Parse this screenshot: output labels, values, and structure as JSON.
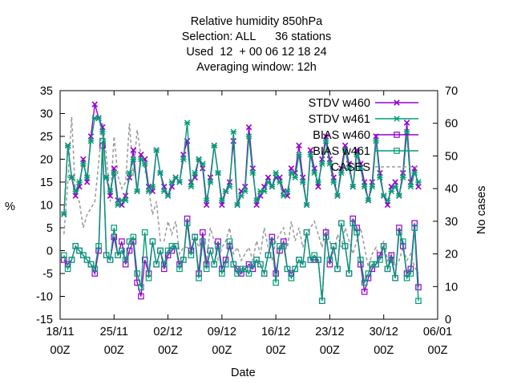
{
  "chart_data": {
    "type": "line",
    "title_lines": [
      "Relative humidity 850hPa",
      "Selection: ALL      36 stations",
      "Used  12  + 00 06 12 18 24",
      "Averaging window: 12h"
    ],
    "xlabel": "Date",
    "ylabel": "%",
    "y2label": "No cases",
    "x_range_days": [
      0,
      49
    ],
    "ylim": [
      -15,
      35
    ],
    "y2lim": [
      0,
      70
    ],
    "x_ticks": [
      {
        "day": 0,
        "label": "18/11",
        "sub": "00Z"
      },
      {
        "day": 7,
        "label": "25/11",
        "sub": "00Z"
      },
      {
        "day": 14,
        "label": "02/12",
        "sub": "00Z"
      },
      {
        "day": 21,
        "label": "09/12",
        "sub": "00Z"
      },
      {
        "day": 28,
        "label": "16/12",
        "sub": "00Z"
      },
      {
        "day": 35,
        "label": "23/12",
        "sub": "00Z"
      },
      {
        "day": 42,
        "label": "30/12",
        "sub": "00Z"
      },
      {
        "day": 49,
        "label": "06/01",
        "sub": "00Z"
      }
    ],
    "y_ticks": [
      "-15",
      "-10",
      "-5",
      "0",
      "5",
      "10",
      "15",
      "20",
      "25",
      "30",
      "35"
    ],
    "y2_ticks": [
      "0",
      "10",
      "20",
      "30",
      "40",
      "50",
      "60",
      "70"
    ],
    "legend_position": "top-right",
    "grid": false,
    "x_values_days": [
      0.5,
      1,
      1.5,
      2,
      2.5,
      3,
      3.5,
      4,
      4.5,
      5,
      5.5,
      6,
      6.5,
      7,
      7.5,
      8,
      8.5,
      9,
      9.5,
      10,
      10.5,
      11,
      11.5,
      12,
      12.5,
      13,
      13.5,
      14,
      14.5,
      15,
      15.5,
      16,
      16.5,
      17,
      17.5,
      18,
      18.5,
      19,
      19.5,
      20,
      20.5,
      21,
      21.5,
      22,
      22.5,
      23,
      23.5,
      24,
      24.5,
      25,
      25.5,
      26,
      26.5,
      27,
      27.5,
      28,
      28.5,
      29,
      29.5,
      30,
      30.5,
      31,
      31.5,
      32,
      32.5,
      33,
      33.5,
      34,
      34.5,
      35,
      35.5,
      36,
      36.5,
      37,
      37.5,
      38,
      38.5,
      39,
      39.5,
      40,
      40.5,
      41,
      41.5,
      42,
      42.5,
      43,
      43.5,
      44,
      44.5,
      45,
      45.5,
      46,
      46.5
    ],
    "series": [
      {
        "name": "STDV w460",
        "axis": "left",
        "style": "line-x",
        "color": "#9400d3",
        "values": [
          8,
          23,
          16,
          12,
          14,
          20,
          15,
          25,
          32,
          29,
          27,
          16,
          12,
          18,
          11,
          10,
          12,
          16,
          22,
          13,
          21,
          20,
          14,
          13,
          22,
          17,
          14,
          12,
          14,
          16,
          15,
          21,
          24,
          15,
          16,
          20,
          18,
          10,
          16,
          23,
          17,
          10,
          13,
          15,
          24,
          10,
          13,
          14,
          27,
          18,
          10,
          12,
          14,
          16,
          14,
          16,
          16,
          13,
          12,
          18,
          17,
          23,
          16,
          10,
          22,
          18,
          14,
          20,
          25,
          20,
          16,
          12,
          18,
          23,
          19,
          14,
          22,
          19,
          15,
          11,
          15,
          25,
          17,
          12,
          10,
          14,
          15,
          12,
          17,
          28,
          15,
          18,
          14
        ]
      },
      {
        "name": "STDV w461",
        "axis": "left",
        "style": "line-star",
        "color": "#009e73",
        "values": [
          8,
          23,
          16,
          13,
          15,
          19,
          16,
          24,
          29,
          29,
          26,
          16,
          13,
          17,
          10,
          11,
          11,
          17,
          20,
          13,
          20,
          19,
          13,
          14,
          22,
          17,
          13,
          12,
          15,
          16,
          15,
          20,
          28,
          14,
          17,
          20,
          19,
          11,
          15,
          23,
          17,
          11,
          13,
          14,
          26,
          10,
          12,
          13,
          25,
          17,
          11,
          13,
          13,
          15,
          14,
          17,
          15,
          12,
          13,
          17,
          16,
          21,
          15,
          10,
          21,
          17,
          15,
          19,
          24,
          19,
          15,
          12,
          17,
          22,
          18,
          14,
          21,
          18,
          14,
          11,
          14,
          24,
          16,
          12,
          11,
          13,
          14,
          12,
          16,
          26,
          14,
          17,
          15
        ]
      },
      {
        "name": "BIAS w460",
        "axis": "left",
        "style": "line-square",
        "color": "#9400d3",
        "values": [
          -2,
          -3,
          -2,
          1,
          0,
          -1,
          -2,
          -3,
          -5,
          0,
          23,
          -1,
          -2,
          3,
          -1,
          2,
          -3,
          0,
          2,
          -7,
          -10,
          -2,
          -5,
          2,
          -3,
          0,
          -4,
          -1,
          0,
          1,
          -3,
          -2,
          7,
          0,
          3,
          -5,
          4,
          -3,
          0,
          -3,
          2,
          -4,
          -2,
          1,
          -3,
          -4,
          -5,
          -4,
          -3,
          -4,
          -2,
          -3,
          -5,
          -1,
          3,
          -5,
          0,
          2,
          -4,
          -5,
          -4,
          -2,
          -3,
          4,
          -2,
          -2,
          -2,
          -11,
          4,
          -3,
          1,
          -4,
          6,
          1,
          -5,
          7,
          5,
          -3,
          -9,
          -6,
          -4,
          -3,
          -1,
          1,
          -4,
          -1,
          -6,
          5,
          1,
          -5,
          -4,
          6,
          -8
        ]
      },
      {
        "name": "BIAS w461",
        "axis": "left",
        "style": "line-square",
        "color": "#009e73",
        "values": [
          -1,
          -4,
          -2,
          1,
          0,
          -1,
          -2,
          -3,
          -4,
          1,
          24,
          -1,
          -2,
          5,
          -1,
          0,
          -2,
          2,
          3,
          -5,
          -8,
          4,
          -6,
          2,
          -3,
          0,
          -3,
          0,
          1,
          1,
          -4,
          -2,
          6,
          -1,
          3,
          -6,
          2,
          -4,
          0,
          -3,
          1,
          -5,
          -3,
          2,
          -3,
          -5,
          -4,
          -4,
          -5,
          -3,
          -2,
          -3,
          -5,
          -1,
          2,
          -7,
          1,
          1,
          -4,
          -6,
          -4,
          -2,
          -3,
          4,
          -2,
          -1,
          -2,
          -11,
          3,
          -2,
          1,
          -4,
          6,
          1,
          -5,
          6,
          4,
          -2,
          -7,
          -5,
          -3,
          -3,
          -2,
          1,
          -4,
          -2,
          -6,
          4,
          2,
          -6,
          -5,
          5,
          -11
        ]
      },
      {
        "name": "CASES",
        "axis": "right",
        "style": "dashed",
        "color": "#999999",
        "values": [
          26,
          42,
          62,
          38,
          36,
          28,
          32,
          34,
          36,
          48,
          60,
          50,
          36,
          56,
          44,
          40,
          42,
          60,
          44,
          58,
          50,
          46,
          40,
          32,
          36,
          24,
          24,
          30,
          26,
          30,
          20,
          22,
          22,
          20,
          26,
          22,
          24,
          18,
          28,
          24,
          18,
          22,
          24,
          28,
          20,
          22,
          18,
          20,
          22,
          18,
          24,
          20,
          28,
          22,
          18,
          24,
          26,
          28,
          22,
          30,
          24,
          28,
          22,
          26,
          28,
          30,
          26,
          22,
          28,
          24,
          20,
          26,
          22,
          28,
          24,
          20,
          24,
          28,
          22,
          16,
          20,
          22,
          18,
          24,
          18,
          20,
          16,
          18,
          22,
          18,
          20,
          16,
          14
        ]
      }
    ]
  }
}
